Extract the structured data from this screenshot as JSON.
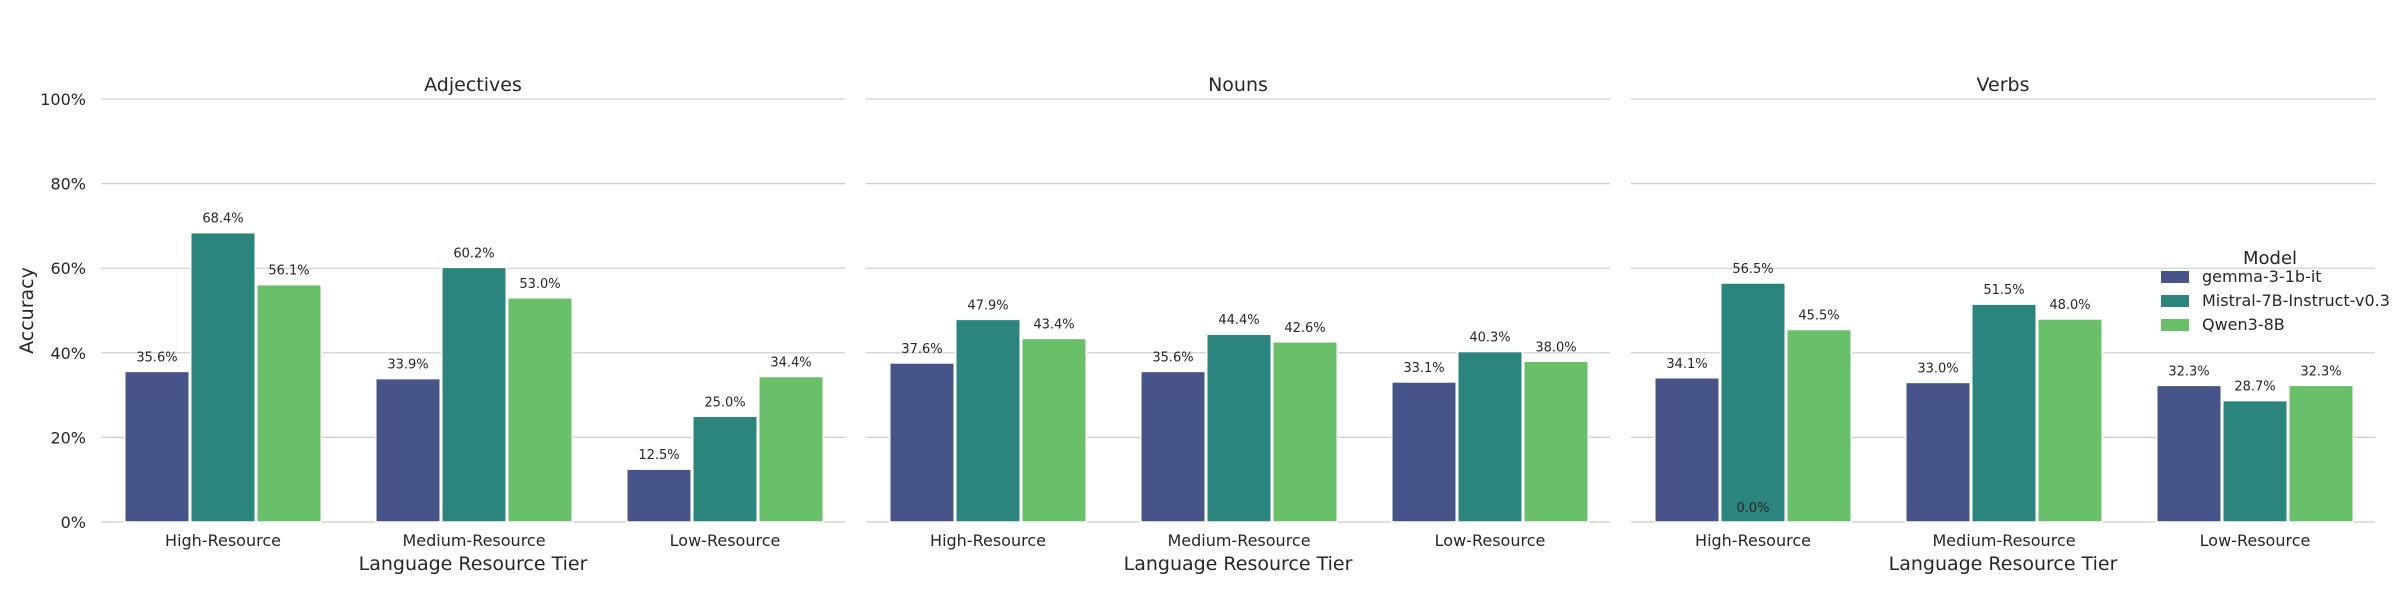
{
  "chart_data": {
    "type": "bar",
    "ylabel": "Accuracy",
    "ylim": [
      0,
      100
    ],
    "yticks": [
      0,
      20,
      40,
      60,
      80,
      100
    ],
    "ytick_labels": [
      "0%",
      "20%",
      "40%",
      "60%",
      "80%",
      "100%"
    ],
    "grid": "horizontal",
    "legend": {
      "title": "Model",
      "placement": "right",
      "entries": [
        "gemma-3-1b-it",
        "Mistral-7B-Instruct-v0.3",
        "Qwen3-8B"
      ]
    },
    "colors": [
      "#46548a",
      "#2c847f",
      "#6abf69"
    ],
    "panels": [
      {
        "title": "Adjectives",
        "xlabel": "Language Resource Tier",
        "categories": [
          "High-Resource",
          "Medium-Resource",
          "Low-Resource"
        ],
        "series": [
          {
            "name": "gemma-3-1b-it",
            "values": [
              35.6,
              33.9,
              12.5
            ],
            "labels": [
              "35.6%",
              "33.9%",
              "12.5%"
            ]
          },
          {
            "name": "Mistral-7B-Instruct-v0.3",
            "values": [
              68.4,
              60.2,
              25.0
            ],
            "labels": [
              "68.4%",
              "60.2%",
              "25.0%"
            ]
          },
          {
            "name": "Qwen3-8B",
            "values": [
              56.1,
              53.0,
              34.4
            ],
            "labels": [
              "56.1%",
              "53.0%",
              "34.4%"
            ]
          }
        ]
      },
      {
        "title": "Nouns",
        "xlabel": "Language Resource Tier",
        "categories": [
          "High-Resource",
          "Medium-Resource",
          "Low-Resource"
        ],
        "series": [
          {
            "name": "gemma-3-1b-it",
            "values": [
              37.6,
              35.6,
              33.1
            ],
            "labels": [
              "37.6%",
              "35.6%",
              "33.1%"
            ]
          },
          {
            "name": "Mistral-7B-Instruct-v0.3",
            "values": [
              47.9,
              44.4,
              40.3
            ],
            "labels": [
              "47.9%",
              "44.4%",
              "40.3%"
            ]
          },
          {
            "name": "Qwen3-8B",
            "values": [
              43.4,
              42.6,
              38.0
            ],
            "labels": [
              "43.4%",
              "42.6%",
              "38.0%"
            ]
          }
        ]
      },
      {
        "title": "Verbs",
        "xlabel": "Language Resource Tier",
        "categories": [
          "High-Resource",
          "Medium-Resource",
          "Low-Resource"
        ],
        "series": [
          {
            "name": "gemma-3-1b-it",
            "values": [
              34.1,
              33.0,
              32.3
            ],
            "labels": [
              "34.1%",
              "33.0%",
              "32.3%"
            ]
          },
          {
            "name": "Mistral-7B-Instruct-v0.3",
            "values": [
              56.5,
              51.5,
              28.7
            ],
            "labels": [
              "56.5%",
              "51.5%",
              "28.7%"
            ]
          },
          {
            "name": "Qwen3-8B",
            "values": [
              45.5,
              48.0,
              32.3
            ],
            "labels": [
              "45.5%",
              "48.0%",
              "32.3%"
            ]
          }
        ]
      }
    ],
    "annotations": [
      {
        "panel": 2,
        "category": 0,
        "series": 1,
        "text": "0.0%"
      }
    ]
  }
}
